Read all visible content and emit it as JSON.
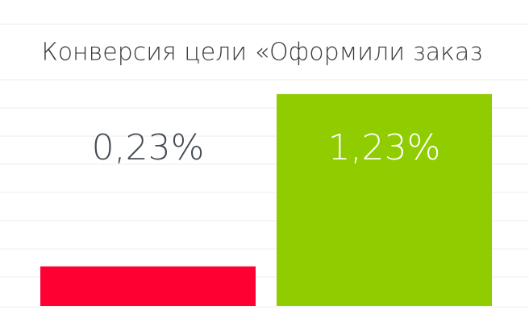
{
  "chart_data": {
    "type": "bar",
    "title": "Конверсия цели «Оформили заказ",
    "categories": [
      null,
      null
    ],
    "values": [
      0.23,
      1.23
    ],
    "value_labels": [
      "0,23%",
      "1,23%"
    ],
    "colors": [
      "#ff0033",
      "#8fcc00"
    ],
    "ylim": [
      0,
      1.5
    ]
  }
}
